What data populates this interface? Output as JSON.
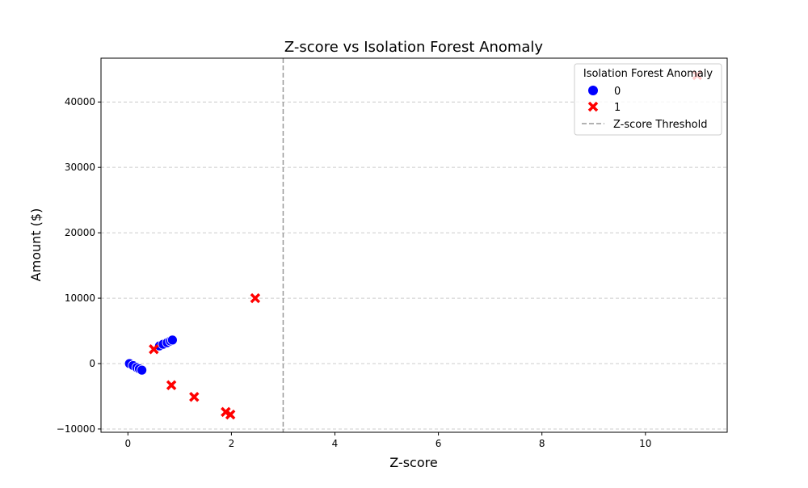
{
  "chart_data": {
    "type": "scatter",
    "title": "Z-score vs Isolation Forest Anomaly",
    "xlabel": "Z-score",
    "ylabel": "Amount ($)",
    "xlim": [
      -0.52,
      11.58
    ],
    "ylim": [
      -10500,
      46700
    ],
    "xticks": [
      0,
      2,
      4,
      6,
      8,
      10
    ],
    "yticks": [
      -10000,
      0,
      10000,
      20000,
      30000,
      40000
    ],
    "ytick_labels": [
      "−10000",
      "0",
      "10000",
      "20000",
      "30000",
      "40000"
    ],
    "grid": true,
    "threshold": {
      "x": 3,
      "label": "Z-score Threshold",
      "color": "#999999"
    },
    "legend": {
      "title": "Isolation Forest Anomaly",
      "placement": "top-right"
    },
    "series": [
      {
        "name": "0",
        "marker": "circle",
        "color": "#0000ff",
        "points": [
          [
            0.03,
            0
          ],
          [
            0.1,
            -300
          ],
          [
            0.17,
            -600
          ],
          [
            0.22,
            -800
          ],
          [
            0.27,
            -1000
          ],
          [
            0.61,
            2700
          ],
          [
            0.68,
            2950
          ],
          [
            0.76,
            3200
          ],
          [
            0.82,
            3450
          ],
          [
            0.86,
            3600
          ]
        ]
      },
      {
        "name": "1",
        "marker": "x",
        "color": "#ff0000",
        "points": [
          [
            0.5,
            2200
          ],
          [
            0.84,
            -3300
          ],
          [
            1.28,
            -5100
          ],
          [
            1.89,
            -7400
          ],
          [
            1.98,
            -7800
          ],
          [
            2.46,
            10000
          ],
          [
            11.0,
            44100
          ]
        ]
      }
    ]
  }
}
